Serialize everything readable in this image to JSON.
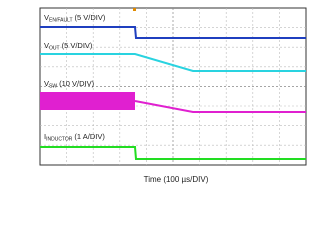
{
  "traces": [
    {
      "symbol": "V",
      "subscript": "EN/FAULT",
      "scale": "(5 V/DIV)"
    },
    {
      "symbol": "V",
      "subscript": "OUT",
      "scale": "(5 V/DIV)"
    },
    {
      "symbol": "V",
      "subscript": "SW",
      "scale": "(10 V/DIV)"
    },
    {
      "symbol": "I",
      "subscript": "INDUCTOR",
      "scale": "(1 A/DIV)"
    }
  ],
  "x_axis_label": "Time (100 µs/DIV)"
}
